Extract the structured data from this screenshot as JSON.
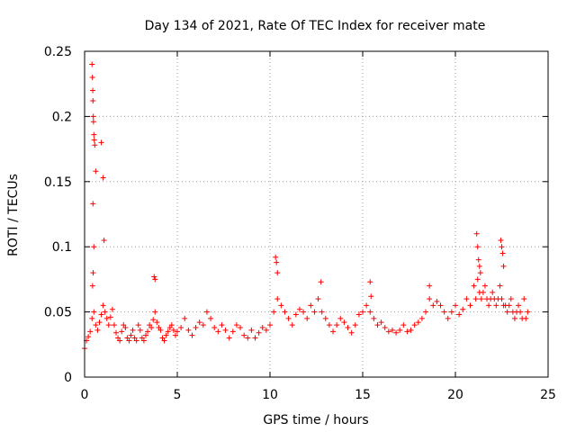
{
  "chart_data": {
    "type": "scatter",
    "title": "Day 134 of 2021, Rate Of TEC Index for receiver mate",
    "xlabel": "GPS time / hours",
    "ylabel": "ROTI / TECUs",
    "xlim": [
      0,
      25
    ],
    "ylim": [
      0,
      0.25
    ],
    "xticks": [
      0,
      5,
      10,
      15,
      20,
      25
    ],
    "xtick_labels": [
      "0",
      "5",
      "10",
      "15",
      "20",
      "25"
    ],
    "yticks": [
      0,
      0.05,
      0.1,
      0.15,
      0.2,
      0.25
    ],
    "ytick_labels": [
      "0",
      "0.05",
      "0.1",
      "0.15",
      "0.2",
      "0.25"
    ],
    "grid": true,
    "marker": "+",
    "color": "#ff0000",
    "series": [
      {
        "name": "ROTI",
        "x": [
          0.0,
          0.1,
          0.2,
          0.3,
          0.4,
          0.5,
          0.6,
          0.7,
          0.8,
          0.9,
          1.0,
          1.1,
          1.2,
          1.3,
          1.4,
          1.5,
          1.6,
          1.7,
          1.8,
          1.9,
          2.0,
          2.1,
          2.2,
          2.3,
          2.4,
          2.5,
          2.6,
          2.7,
          2.8,
          2.9,
          3.0,
          3.1,
          3.2,
          3.3,
          3.4,
          3.5,
          3.6,
          3.7,
          3.8,
          3.9,
          4.0,
          4.1,
          4.2,
          4.3,
          4.4,
          4.5,
          4.6,
          4.7,
          4.8,
          4.9,
          5.0,
          5.2,
          5.4,
          5.6,
          5.8,
          6.0,
          6.2,
          6.4,
          6.6,
          6.8,
          7.0,
          7.2,
          7.4,
          7.6,
          7.8,
          8.0,
          8.2,
          8.4,
          8.6,
          8.8,
          9.0,
          9.2,
          9.4,
          9.6,
          9.8,
          10.0,
          10.2,
          10.4,
          10.6,
          10.8,
          11.0,
          11.2,
          11.4,
          11.6,
          11.8,
          12.0,
          12.2,
          12.4,
          12.6,
          12.8,
          13.0,
          13.2,
          13.4,
          13.6,
          13.8,
          14.0,
          14.2,
          14.4,
          14.6,
          14.8,
          15.0,
          15.2,
          15.4,
          15.6,
          15.8,
          16.0,
          16.2,
          16.4,
          16.6,
          16.8,
          17.0,
          17.2,
          17.4,
          17.6,
          17.8,
          18.0,
          18.2,
          18.4,
          18.6,
          18.8,
          19.0,
          19.2,
          19.4,
          19.6,
          19.8,
          20.0,
          20.2,
          20.4,
          20.6,
          20.8,
          21.0,
          21.1,
          21.2,
          21.3,
          21.4,
          21.5,
          21.6,
          21.7,
          21.8,
          21.9,
          22.0,
          22.1,
          22.2,
          22.3,
          22.4,
          22.5,
          22.6,
          22.7,
          22.8,
          22.9,
          23.0,
          23.1,
          23.2,
          23.3,
          23.4,
          23.5,
          23.6,
          23.7,
          23.8,
          23.9,
          0.4,
          0.42,
          0.44,
          0.45,
          0.47,
          0.48,
          0.5,
          0.52,
          0.55,
          0.6,
          0.9,
          1.0,
          1.05,
          0.45,
          0.5,
          0.43,
          0.46,
          3.75,
          3.8,
          10.3,
          10.35,
          10.4,
          12.75,
          15.4,
          15.45,
          18.6,
          21.15,
          21.2,
          21.25,
          21.3,
          21.35,
          22.45,
          22.5,
          22.55,
          22.6
        ],
        "y": [
          0.022,
          0.028,
          0.031,
          0.035,
          0.045,
          0.05,
          0.04,
          0.036,
          0.042,
          0.048,
          0.055,
          0.05,
          0.045,
          0.04,
          0.046,
          0.052,
          0.04,
          0.034,
          0.03,
          0.028,
          0.035,
          0.04,
          0.038,
          0.03,
          0.028,
          0.032,
          0.036,
          0.03,
          0.028,
          0.04,
          0.036,
          0.03,
          0.028,
          0.032,
          0.035,
          0.04,
          0.038,
          0.044,
          0.05,
          0.042,
          0.038,
          0.036,
          0.03,
          0.028,
          0.032,
          0.035,
          0.038,
          0.04,
          0.036,
          0.032,
          0.035,
          0.038,
          0.045,
          0.036,
          0.032,
          0.038,
          0.042,
          0.04,
          0.05,
          0.045,
          0.038,
          0.035,
          0.04,
          0.036,
          0.03,
          0.035,
          0.04,
          0.038,
          0.032,
          0.03,
          0.036,
          0.03,
          0.034,
          0.038,
          0.036,
          0.04,
          0.05,
          0.06,
          0.055,
          0.05,
          0.045,
          0.04,
          0.048,
          0.052,
          0.05,
          0.045,
          0.055,
          0.05,
          0.06,
          0.05,
          0.045,
          0.04,
          0.035,
          0.04,
          0.045,
          0.042,
          0.038,
          0.034,
          0.04,
          0.048,
          0.05,
          0.055,
          0.05,
          0.045,
          0.04,
          0.042,
          0.038,
          0.035,
          0.036,
          0.034,
          0.036,
          0.04,
          0.035,
          0.036,
          0.04,
          0.042,
          0.045,
          0.05,
          0.06,
          0.055,
          0.058,
          0.055,
          0.05,
          0.045,
          0.05,
          0.055,
          0.048,
          0.052,
          0.06,
          0.055,
          0.07,
          0.06,
          0.075,
          0.065,
          0.06,
          0.065,
          0.07,
          0.06,
          0.055,
          0.06,
          0.065,
          0.06,
          0.055,
          0.06,
          0.07,
          0.06,
          0.055,
          0.055,
          0.05,
          0.055,
          0.06,
          0.05,
          0.045,
          0.05,
          0.055,
          0.05,
          0.045,
          0.06,
          0.045,
          0.05,
          0.24,
          0.23,
          0.22,
          0.212,
          0.2,
          0.196,
          0.186,
          0.182,
          0.178,
          0.158,
          0.18,
          0.153,
          0.105,
          0.133,
          0.1,
          0.07,
          0.08,
          0.077,
          0.075,
          0.092,
          0.088,
          0.08,
          0.073,
          0.073,
          0.062,
          0.07,
          0.11,
          0.1,
          0.09,
          0.085,
          0.08,
          0.105,
          0.1,
          0.095,
          0.085
        ]
      }
    ]
  }
}
